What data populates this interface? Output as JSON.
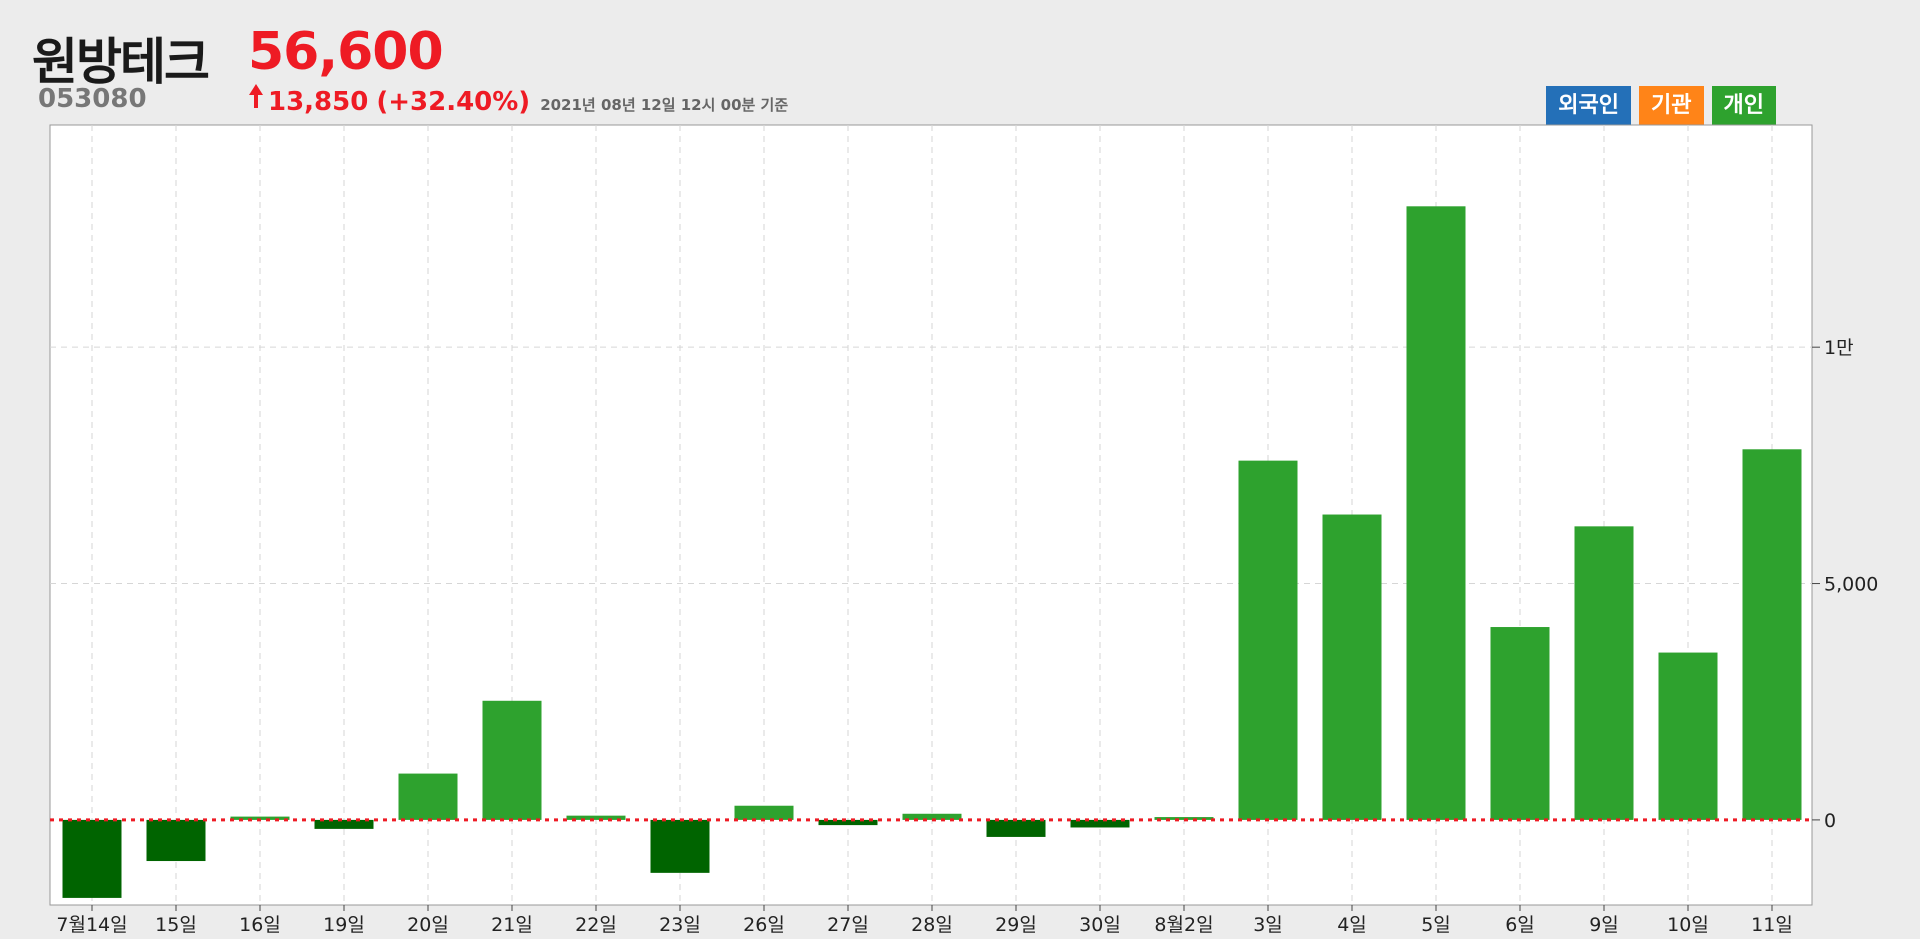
{
  "header": {
    "name": "원방테크",
    "code": "053080",
    "price": "56,600",
    "change": "13,850",
    "change_pct": "(+32.40%)",
    "timestamp": "2021년 08년 12일 12시 00분 기준"
  },
  "legend": [
    {
      "label": "외국인",
      "color": "#2470b8"
    },
    {
      "label": "기관",
      "color": "#ff8418"
    },
    {
      "label": "개인",
      "color": "#2ea22e"
    }
  ],
  "colors": {
    "positive": "#2ea22e",
    "negative": "#006400",
    "zero_line": "#ee1b24",
    "up": "#ee1b24"
  },
  "chart_data": {
    "type": "bar",
    "series": [
      {
        "name": "개인",
        "categories": [
          "7월14일",
          "15일",
          "16일",
          "19일",
          "20일",
          "21일",
          "22일",
          "23일",
          "26일",
          "27일",
          "28일",
          "29일",
          "30일",
          "8월2일",
          "3일",
          "4일",
          "5일",
          "6일",
          "9일",
          "10일",
          "11일"
        ],
        "values": [
          -1650,
          -870,
          70,
          -190,
          980,
          2520,
          90,
          -1120,
          300,
          -110,
          130,
          -360,
          -160,
          60,
          7600,
          6460,
          12980,
          4080,
          6210,
          3540,
          7840
        ]
      }
    ],
    "yticks": [
      {
        "value": 0,
        "label": "0"
      },
      {
        "value": 5000,
        "label": "5,000"
      },
      {
        "value": 10000,
        "label": "1만"
      }
    ],
    "ylim": [
      -1800,
      14700
    ],
    "grid": true,
    "legend_position": "top-right",
    "zero_line": "dotted"
  }
}
